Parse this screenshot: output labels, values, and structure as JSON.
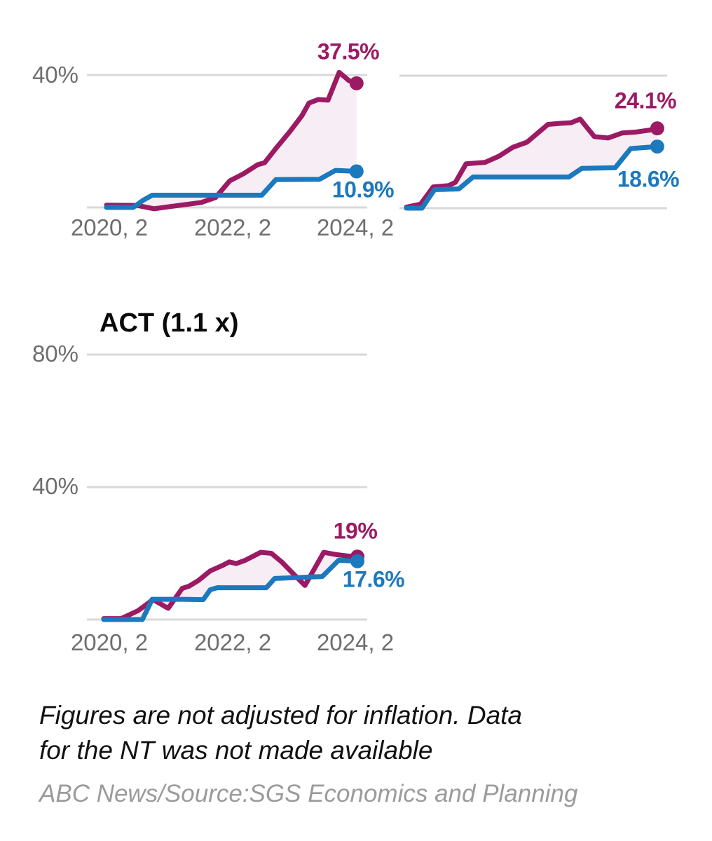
{
  "colors": {
    "magenta": "#9c1a63",
    "blue": "#1b79be",
    "band_fill": "#f6eef4",
    "gridline": "#d8d8d8",
    "axis_text": "#6e6e6e",
    "title_text": "#0a0a0a",
    "note_text": "#111111",
    "source_text": "#9b9b9b"
  },
  "footer": {
    "note_lines": [
      "Figures are not adjusted for inflation. Data",
      "for the NT was not made available"
    ],
    "source": "ABC News/Source:SGS Economics and Planning"
  },
  "chart_data": [
    {
      "id": "top-left",
      "type": "line",
      "title": "",
      "x_axis": {
        "tick_labels": [
          "2020, 2",
          "2022, 2",
          "2024, 2"
        ]
      },
      "y_axis": {
        "tick_labels": [
          "40%"
        ],
        "range": [
          0,
          47
        ],
        "unit": "%"
      },
      "gridlines_pct": [
        40
      ],
      "band_between_series": true,
      "series": [
        {
          "name": "magenta-series",
          "color_key": "magenta",
          "end_label": "37.5%",
          "end_value": 37.5,
          "points": [
            [
              0.07,
              0.7
            ],
            [
              0.18,
              0.6
            ],
            [
              0.24,
              -0.4
            ],
            [
              0.3,
              0.3
            ],
            [
              0.408,
              1.5
            ],
            [
              0.459,
              3.0
            ],
            [
              0.509,
              8.0
            ],
            [
              0.559,
              10.2
            ],
            [
              0.609,
              12.9
            ],
            [
              0.634,
              13.5
            ],
            [
              0.674,
              17.8
            ],
            [
              0.724,
              22.9
            ],
            [
              0.767,
              27.7
            ],
            [
              0.792,
              31.5
            ],
            [
              0.825,
              32.6
            ],
            [
              0.86,
              32.4
            ],
            [
              0.9,
              40.8
            ],
            [
              0.935,
              38.3
            ],
            [
              0.962,
              37.5
            ]
          ]
        },
        {
          "name": "blue-series",
          "color_key": "blue",
          "end_label": "10.9%",
          "end_value": 10.9,
          "points": [
            [
              0.07,
              0
            ],
            [
              0.165,
              0
            ],
            [
              0.203,
              2.3
            ],
            [
              0.233,
              3.7
            ],
            [
              0.624,
              3.7
            ],
            [
              0.674,
              8.4
            ],
            [
              0.83,
              8.5
            ],
            [
              0.887,
              11.2
            ],
            [
              0.962,
              10.9
            ]
          ]
        }
      ]
    },
    {
      "id": "top-right",
      "type": "line",
      "title": "",
      "x_axis": {
        "tick_labels": []
      },
      "y_axis": {
        "tick_labels": [],
        "range": [
          0,
          47
        ],
        "unit": "%"
      },
      "gridlines_pct": [
        40
      ],
      "band_between_series": true,
      "series": [
        {
          "name": "magenta-series",
          "color_key": "magenta",
          "end_label": "24.1%",
          "end_value": 24.1,
          "points": [
            [
              0.026,
              0.3
            ],
            [
              0.079,
              1.2
            ],
            [
              0.126,
              6.4
            ],
            [
              0.183,
              6.8
            ],
            [
              0.209,
              7.8
            ],
            [
              0.249,
              13.4
            ],
            [
              0.319,
              13.8
            ],
            [
              0.372,
              15.7
            ],
            [
              0.424,
              18.4
            ],
            [
              0.476,
              19.9
            ],
            [
              0.555,
              25.3
            ],
            [
              0.602,
              25.6
            ],
            [
              0.641,
              25.8
            ],
            [
              0.675,
              26.9
            ],
            [
              0.728,
              21.6
            ],
            [
              0.78,
              21.2
            ],
            [
              0.832,
              22.7
            ],
            [
              0.885,
              23.0
            ],
            [
              0.937,
              23.6
            ],
            [
              0.963,
              24.1
            ]
          ]
        },
        {
          "name": "blue-series",
          "color_key": "blue",
          "end_label": "18.6%",
          "end_value": 18.6,
          "points": [
            [
              0.026,
              0
            ],
            [
              0.084,
              0
            ],
            [
              0.131,
              5.6
            ],
            [
              0.222,
              5.8
            ],
            [
              0.275,
              9.4
            ],
            [
              0.633,
              9.4
            ],
            [
              0.681,
              12.0
            ],
            [
              0.806,
              12.2
            ],
            [
              0.864,
              18.0
            ],
            [
              0.916,
              18.3
            ],
            [
              0.963,
              18.6
            ]
          ]
        }
      ]
    },
    {
      "id": "act",
      "type": "line",
      "title": "ACT (1.1 x)",
      "x_axis": {
        "tick_labels": [
          "2020, 2",
          "2022, 2",
          "2024, 2"
        ]
      },
      "y_axis": {
        "tick_labels": [
          "80%",
          "40%"
        ],
        "range": [
          0,
          83
        ],
        "unit": "%"
      },
      "gridlines_pct": [
        80,
        40
      ],
      "band_between_series": true,
      "series": [
        {
          "name": "magenta-series",
          "color_key": "magenta",
          "end_label": "19%",
          "end_value": 19,
          "points": [
            [
              0.06,
              0.3
            ],
            [
              0.123,
              0.3
            ],
            [
              0.183,
              2.7
            ],
            [
              0.223,
              5.2
            ],
            [
              0.235,
              6.1
            ],
            [
              0.273,
              4.2
            ],
            [
              0.29,
              3.4
            ],
            [
              0.34,
              9.4
            ],
            [
              0.365,
              10.1
            ],
            [
              0.398,
              11.8
            ],
            [
              0.44,
              14.7
            ],
            [
              0.483,
              16.3
            ],
            [
              0.508,
              17.4
            ],
            [
              0.533,
              16.9
            ],
            [
              0.565,
              17.9
            ],
            [
              0.62,
              20.3
            ],
            [
              0.658,
              20.0
            ],
            [
              0.695,
              17.4
            ],
            [
              0.74,
              13.5
            ],
            [
              0.778,
              10.3
            ],
            [
              0.845,
              20.3
            ],
            [
              0.89,
              19.6
            ],
            [
              0.928,
              19.2
            ],
            [
              0.965,
              19.0
            ]
          ]
        },
        {
          "name": "blue-series",
          "color_key": "blue",
          "end_label": "17.6%",
          "end_value": 17.6,
          "points": [
            [
              0.06,
              0
            ],
            [
              0.198,
              0
            ],
            [
              0.233,
              6.1
            ],
            [
              0.34,
              6.1
            ],
            [
              0.415,
              6.0
            ],
            [
              0.44,
              9.0
            ],
            [
              0.465,
              9.6
            ],
            [
              0.64,
              9.6
            ],
            [
              0.67,
              12.4
            ],
            [
              0.84,
              13.0
            ],
            [
              0.898,
              17.9
            ],
            [
              0.965,
              17.6
            ]
          ]
        }
      ]
    }
  ]
}
